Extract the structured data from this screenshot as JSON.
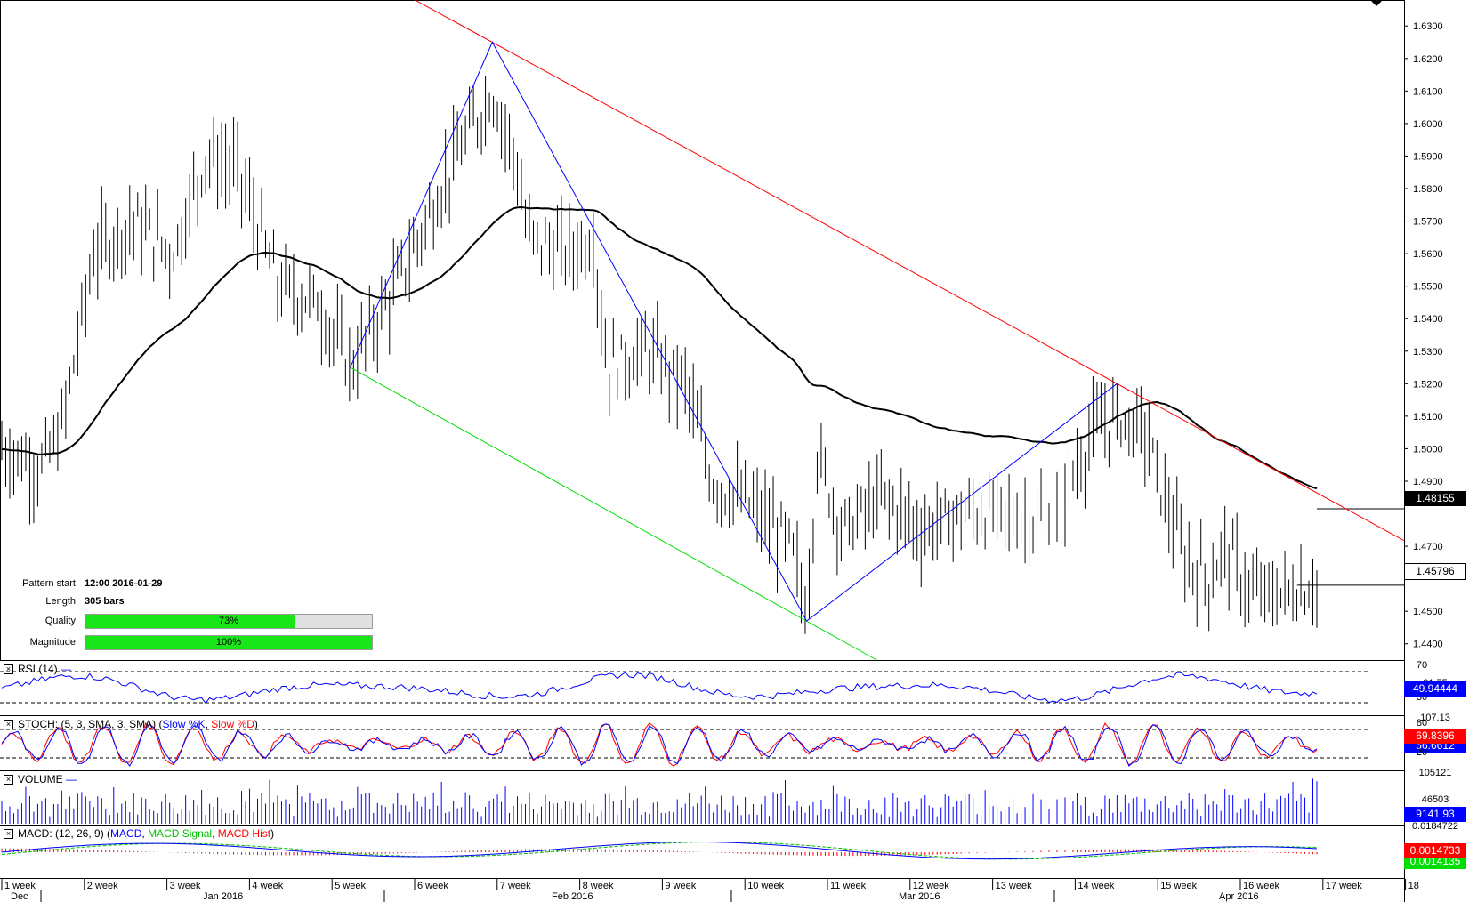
{
  "chart_data": {
    "type": "candlestick",
    "instrument_note": "",
    "price_axis": {
      "ticks": [
        "1.6300",
        "1.6200",
        "1.6100",
        "1.6000",
        "1.5900",
        "1.5800",
        "1.5700",
        "1.5600",
        "1.5500",
        "1.5400",
        "1.5300",
        "1.5200",
        "1.5100",
        "1.5000",
        "1.4900",
        "1.4700",
        "1.4500",
        "1.4400"
      ],
      "range": [
        1.435,
        1.638
      ],
      "current_price": "1.45796",
      "ma_value": "1.48155"
    },
    "time_axis": {
      "week_labels": [
        "1 week",
        "2 week",
        "3 week",
        "4 week",
        "5 week",
        "6 week",
        "7 week",
        "8 week",
        "9 week",
        "10 week",
        "11 week",
        "12 week",
        "13 week",
        "14 week",
        "15 week",
        "16 week",
        "17 week",
        "18"
      ],
      "month_labels": [
        "Dec",
        "Jan 2016",
        "Feb 2016",
        "Mar 2016",
        "Apr 2016"
      ]
    },
    "pattern": {
      "start_label": "Pattern start",
      "start_value": "12:00 2016-01-29",
      "length_label": "Length",
      "length_value": "305 bars",
      "quality_label": "Quality",
      "quality_value": "73%",
      "quality_pct": 73,
      "magnitude_label": "Magnitude",
      "magnitude_value": "100%",
      "magnitude_pct": 100
    },
    "zigzag_points": [
      {
        "bar": 0.265,
        "price": 1.525
      },
      {
        "bar": 0.373,
        "price": 1.625
      },
      {
        "bar": 0.612,
        "price": 1.447
      },
      {
        "bar": 0.848,
        "price": 1.52
      }
    ],
    "indicators": {
      "rsi": {
        "label": "RSI (14)",
        "value": "49.94444",
        "levels": [
          "70",
          "30"
        ],
        "top": "81.75"
      },
      "stoch": {
        "label": "STOCH: (5, 3, SMA, 3, SMA)",
        "slow_k": "Slow %K",
        "slow_d": "Slow %D",
        "value": "69.8396",
        "value2": "56.6612",
        "levels": [
          "80",
          "20"
        ],
        "top": "107.13"
      },
      "volume": {
        "label": "VOLUME",
        "value": "9141.93",
        "ticks": [
          "105121",
          "46503"
        ]
      },
      "macd": {
        "label": "MACD: (12, 26, 9)",
        "macd": "MACD",
        "signal": "MACD Signal",
        "hist": "MACD Hist",
        "value": "0.0014733",
        "value2": "0.0014135",
        "top": "0.0184722"
      }
    },
    "colors": {
      "resistance": "#ff0000",
      "support": "#00dd00",
      "zigzag": "#0000ff",
      "ma": "#000000",
      "tag_price_bg": "#ffffff",
      "tag_ma_bg": "#000000",
      "rsi_tag": "#0000ff",
      "stoch_tag": "#ff0000",
      "vol_tag": "#0000ff",
      "macd_tag_red": "#ff0000",
      "macd_tag_green": "#00dd00"
    }
  }
}
